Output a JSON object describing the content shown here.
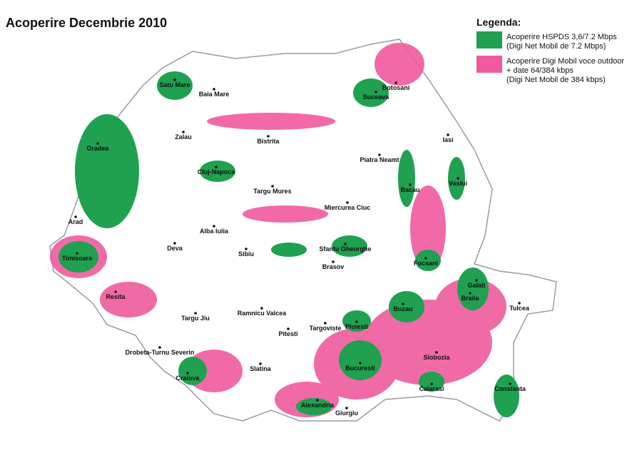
{
  "header": {
    "title": "Acoperire Decembrie 2010"
  },
  "legend": {
    "title": "Legenda:",
    "items": [
      {
        "lines": [
          "Acoperire HSPDS 3,6/7.2 Mbps",
          "(Digi Net Mobil de 7.2 Mbps)"
        ]
      },
      {
        "lines": [
          "Acoperire Digi Mobil voce outdoor",
          "+ date 64/384 kbps",
          "(Digi Net Mobil de 384 kbps)"
        ]
      }
    ]
  },
  "cities": [
    "Satu Mare",
    "Baia Mare",
    "Botosani",
    "Suceava",
    "Zalau",
    "Bistrita",
    "Iasi",
    "Oradea",
    "Piatra Neamt",
    "Cluj-Napoca",
    "Vaslui",
    "Targu Mures",
    "Bacau",
    "Miercurea Ciuc",
    "Arad",
    "Alba Iulia",
    "Deva",
    "Sfantu Gheorghe",
    "Sibiu",
    "Timisoara",
    "Focsani",
    "Brasov",
    "Galati",
    "Braila",
    "Resita",
    "Tulcea",
    "Buzau",
    "Targu Jiu",
    "Ramnicu Valcea",
    "Targoviste",
    "Ploiesti",
    "Pitesti",
    "Drobeta-Turnu Severin",
    "Slobozia",
    "Bucuresti",
    "Slatina",
    "Craiova",
    "Calarasi",
    "Constanta",
    "Alexandria",
    "Giurgiu"
  ]
}
